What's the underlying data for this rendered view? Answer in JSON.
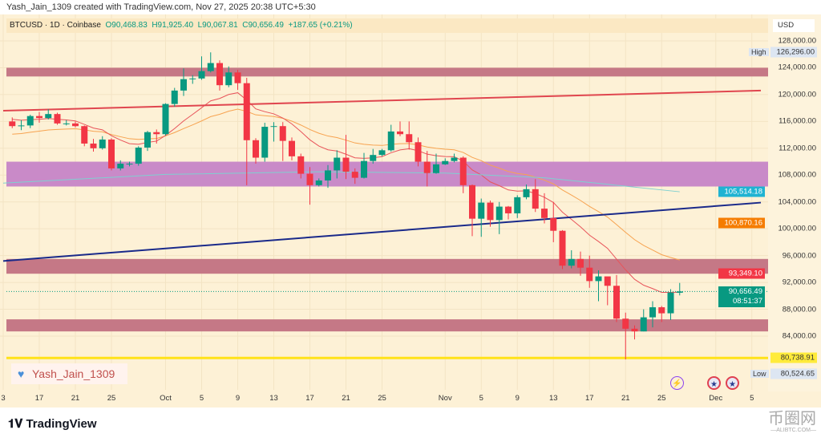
{
  "credit": "Yash_Jain_1309 created with TradingView.com, Nov 27, 2025 20:38 UTC+5:30",
  "legend": {
    "symbol": "BTCUSD · 1D · Coinbase",
    "open": "O90,468.83",
    "high": "H91,925.40",
    "low": "L90,067.81",
    "close": "C90,656.49",
    "change": "+187.65 (+0.21%)"
  },
  "axis": {
    "currency": "USD",
    "labels": [
      "128,000.00",
      "124,000.00",
      "120,000.00",
      "116,000.00",
      "112,000.00",
      "108,000.00",
      "104,000.00",
      "100,000.00",
      "96,000.00",
      "92,000.00",
      "88,000.00",
      "84,000.00"
    ],
    "high_label": "High",
    "high_value": "126,296.00",
    "low_label": "Low",
    "low_value": "80,524.65",
    "badges": [
      {
        "text": "105,514.18",
        "price": 105514.18,
        "color": "#1fb3d2"
      },
      {
        "text": "100,870.16",
        "price": 100870.16,
        "color": "#f57c00"
      },
      {
        "text": "93,349.10",
        "price": 93349.1,
        "color": "#f23645"
      },
      {
        "text": "80,738.91",
        "price": 80738.91,
        "color": "#ffeb3b"
      }
    ],
    "last_price": "90,656.49",
    "countdown": "08:51:37"
  },
  "time_labels": [
    {
      "t": "3",
      "d": 0
    },
    {
      "t": "17",
      "d": 4
    },
    {
      "t": "21",
      "d": 8
    },
    {
      "t": "25",
      "d": 12
    },
    {
      "t": "Oct",
      "d": 18
    },
    {
      "t": "5",
      "d": 22
    },
    {
      "t": "9",
      "d": 26
    },
    {
      "t": "13",
      "d": 30
    },
    {
      "t": "17",
      "d": 34
    },
    {
      "t": "21",
      "d": 38
    },
    {
      "t": "25",
      "d": 42
    },
    {
      "t": "Nov",
      "d": 49
    },
    {
      "t": "5",
      "d": 53
    },
    {
      "t": "9",
      "d": 57
    },
    {
      "t": "13",
      "d": 61
    },
    {
      "t": "17",
      "d": 65
    },
    {
      "t": "21",
      "d": 69
    },
    {
      "t": "25",
      "d": 73
    },
    {
      "t": "Dec",
      "d": 79
    },
    {
      "t": "5",
      "d": 83
    }
  ],
  "signature": "Yash_Jain_1309",
  "brand": "TradingView",
  "watermark": {
    "main": "币圈网",
    "sub": "—ALIBTC.COM—"
  },
  "colors": {
    "up": "#089981",
    "down": "#f23645"
  },
  "chart_data": {
    "type": "candlestick",
    "start_day_index": 1,
    "candles": [
      [
        116000,
        116600,
        115000,
        115300
      ],
      [
        115300,
        116200,
        114700,
        115400
      ],
      [
        115400,
        117000,
        115000,
        116800
      ],
      [
        116800,
        117400,
        115800,
        116500
      ],
      [
        116500,
        117800,
        116300,
        117100
      ],
      [
        117100,
        117300,
        115500,
        115700
      ],
      [
        115700,
        116200,
        115400,
        115700
      ],
      [
        115700,
        116000,
        115100,
        115300
      ],
      [
        115300,
        115400,
        112300,
        112700
      ],
      [
        112700,
        113400,
        111500,
        112000
      ],
      [
        112000,
        113800,
        111800,
        113300
      ],
      [
        113300,
        113500,
        108700,
        109000
      ],
      [
        109000,
        110200,
        108700,
        109700
      ],
      [
        109700,
        110000,
        109300,
        109700
      ],
      [
        109700,
        112300,
        109400,
        112100
      ],
      [
        112100,
        114600,
        111600,
        114400
      ],
      [
        114400,
        114800,
        112700,
        114100
      ],
      [
        114100,
        118700,
        113900,
        118600
      ],
      [
        118600,
        121000,
        118200,
        120600
      ],
      [
        120600,
        123900,
        119800,
        122300
      ],
      [
        122300,
        122900,
        121600,
        122400
      ],
      [
        122400,
        125700,
        122200,
        123500
      ],
      [
        123500,
        126296,
        123300,
        124700
      ],
      [
        124700,
        125100,
        120600,
        121400
      ],
      [
        121400,
        124200,
        121100,
        123300
      ],
      [
        123300,
        123700,
        120700,
        121700
      ],
      [
        121700,
        122500,
        106500,
        113200
      ],
      [
        113200,
        113500,
        109700,
        110600
      ],
      [
        110600,
        115800,
        110000,
        115200
      ],
      [
        115200,
        115900,
        113000,
        115300
      ],
      [
        115300,
        115900,
        110100,
        113100
      ],
      [
        113100,
        113600,
        110200,
        110800
      ],
      [
        110800,
        111200,
        107500,
        108200
      ],
      [
        108200,
        109200,
        103600,
        106500
      ],
      [
        106500,
        107500,
        106300,
        107200
      ],
      [
        107200,
        109500,
        106100,
        108700
      ],
      [
        108700,
        111700,
        107500,
        110600
      ],
      [
        110600,
        114000,
        107400,
        108500
      ],
      [
        108500,
        109000,
        106700,
        107600
      ],
      [
        107600,
        111300,
        107500,
        110100
      ],
      [
        110100,
        111900,
        109700,
        111000
      ],
      [
        111000,
        111900,
        110800,
        111700
      ],
      [
        111700,
        115500,
        111500,
        114500
      ],
      [
        114500,
        116000,
        113800,
        114100
      ],
      [
        114100,
        116000,
        111800,
        112900
      ],
      [
        112900,
        113600,
        109300,
        110000
      ],
      [
        110000,
        111600,
        106300,
        108300
      ],
      [
        108300,
        111200,
        108200,
        109600
      ],
      [
        109600,
        110500,
        109500,
        110100
      ],
      [
        110100,
        111200,
        109900,
        110600
      ],
      [
        110600,
        110800,
        105300,
        106500
      ],
      [
        106500,
        106600,
        98900,
        101500
      ],
      [
        101500,
        104500,
        98800,
        103900
      ],
      [
        103900,
        104200,
        100300,
        101300
      ],
      [
        101300,
        104000,
        99200,
        103300
      ],
      [
        103300,
        103400,
        101400,
        102300
      ],
      [
        102300,
        105000,
        101600,
        104700
      ],
      [
        104700,
        106600,
        104400,
        105900
      ],
      [
        105900,
        107400,
        102500,
        103000
      ],
      [
        103000,
        105300,
        100800,
        101600
      ],
      [
        101600,
        104000,
        98000,
        99700
      ],
      [
        99700,
        99800,
        94000,
        94500
      ],
      [
        94500,
        96800,
        94100,
        95500
      ],
      [
        95500,
        96600,
        93000,
        94200
      ],
      [
        94200,
        96000,
        91200,
        92200
      ],
      [
        92200,
        93800,
        89200,
        92900
      ],
      [
        92900,
        92800,
        88600,
        91500
      ],
      [
        91500,
        93100,
        86100,
        86600
      ],
      [
        86600,
        87500,
        80524,
        85100
      ],
      [
        85100,
        85600,
        83500,
        84700
      ],
      [
        84700,
        88000,
        84700,
        86800
      ],
      [
        86800,
        89200,
        85300,
        88300
      ],
      [
        88300,
        88500,
        86100,
        87400
      ],
      [
        87400,
        91000,
        86400,
        90500
      ],
      [
        90468.83,
        91925.4,
        90067.81,
        90656.49
      ]
    ],
    "ema_fast_end": 93349.1,
    "ema_slow_end": 100870.16,
    "ema200_end": 105514.18,
    "ema200_points": [
      [
        0,
        106800
      ],
      [
        18,
        108100
      ],
      [
        35,
        108500
      ],
      [
        49,
        108300
      ],
      [
        60,
        107600
      ],
      [
        75,
        105514
      ]
    ],
    "zones": [
      [
        124000,
        122700
      ],
      [
        110000,
        106300
      ],
      [
        95500,
        93300
      ],
      [
        86500,
        84700
      ]
    ],
    "zone_colors": [
      "#c57886",
      "#c98ac8",
      "#c57886",
      "#c57886"
    ],
    "trendlines": [
      {
        "from": [
          0,
          117600
        ],
        "to": [
          84,
          120600
        ],
        "color": "#e0464f"
      },
      {
        "from": [
          0,
          95200
        ],
        "to": [
          84,
          103900
        ],
        "color": "#1a2a8a"
      }
    ],
    "hline": {
      "price": 80738.91,
      "color": "#ffe21a"
    },
    "ylim": [
      79000,
      131000
    ]
  }
}
